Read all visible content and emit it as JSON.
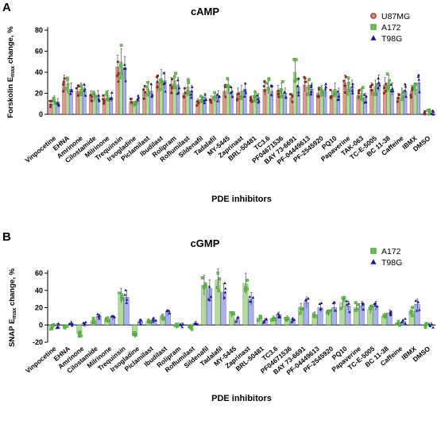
{
  "chart_data": [
    {
      "type": "bar",
      "panel": "A",
      "title": "cAMP",
      "xlabel": "PDE inhibitors",
      "ylabel": "Forskolin E",
      "ylabel_sub": "max",
      "ylabel_tail": " change, %",
      "ylim": [
        0,
        80
      ],
      "yticks": [
        0,
        20,
        40,
        60,
        80
      ],
      "legend_position": "top-right",
      "categories": [
        "Vinpocetine",
        "EHNA",
        "Amrinone",
        "Cilostamide",
        "Milrinone",
        "Trequinsin",
        "Irsogladine",
        "Piclamilast",
        "Ibudilast",
        "Rolipram",
        "Roflumilast",
        "Sildenafil",
        "Tadalafil",
        "MY-5445",
        "Zaprinast",
        "BRL-50481",
        "TC3.6",
        "PF04671536",
        "BAY 73-6691",
        "PF-04449613",
        "PF-2545920",
        "PQ10",
        "Papaverine",
        "TAK-063",
        "TC-E-5005",
        "BC 11-38",
        "Caffeine",
        "IBMX",
        "DMSO"
      ],
      "series": [
        {
          "name": "U87MG",
          "color": "#d98a7a",
          "edge": "#8b2a1e",
          "marker": "circle",
          "values": [
            10,
            30,
            22,
            18,
            15,
            45,
            12,
            22,
            30,
            28,
            20,
            12,
            14,
            22,
            20,
            14,
            24,
            22,
            16,
            28,
            20,
            18,
            30,
            18,
            24,
            28,
            16,
            22,
            1
          ]
        },
        {
          "name": "A172",
          "color": "#a6d48a",
          "edge": "#2e8b2e",
          "marker": "square",
          "values": [
            14,
            26,
            24,
            16,
            18,
            50,
            10,
            24,
            34,
            32,
            26,
            14,
            16,
            26,
            22,
            18,
            26,
            24,
            40,
            26,
            22,
            24,
            28,
            20,
            26,
            30,
            20,
            24,
            1
          ]
        },
        {
          "name": "T98G",
          "color": "#9aa6e6",
          "edge": "#1a1a8c",
          "marker": "triangle",
          "values": [
            12,
            24,
            22,
            18,
            16,
            44,
            14,
            22,
            32,
            28,
            22,
            16,
            18,
            20,
            24,
            16,
            22,
            20,
            26,
            24,
            22,
            20,
            26,
            16,
            30,
            24,
            22,
            30,
            1
          ]
        }
      ]
    },
    {
      "type": "bar",
      "panel": "B",
      "title": "cGMP",
      "xlabel": "PDE inhibitors",
      "ylabel": "SNAP E",
      "ylabel_sub": "max",
      "ylabel_tail": " change, %",
      "ylim": [
        -20,
        60
      ],
      "yticks": [
        -20,
        0,
        20,
        40,
        60
      ],
      "legend_position": "top-right",
      "categories": [
        "Vinpocetine",
        "EHNA",
        "Amrinone",
        "Cilostamide",
        "Milrinone",
        "Trequinsin",
        "Irsogladine",
        "Piclamilast",
        "Ibudilast",
        "Rolipram",
        "Roflumilast",
        "Sildenafil",
        "Tadalafil",
        "MY-5445",
        "Zaprinast",
        "BRL-50481",
        "TC3.6",
        "PF04671536",
        "BAY 73-6691",
        "PF-04449613",
        "PF-2545920",
        "PQ10",
        "Papaverine",
        "TC-E-5005",
        "BC 11-38",
        "Caffeine",
        "IBMX",
        "DMSO"
      ],
      "series": [
        {
          "name": "A172",
          "color": "#a6d48a",
          "edge": "#2e8b2e",
          "marker": "square",
          "values": [
            -2,
            -3,
            -10,
            5,
            6,
            34,
            -12,
            4,
            10,
            -2,
            -3,
            46,
            52,
            12,
            48,
            8,
            8,
            8,
            20,
            12,
            14,
            26,
            20,
            18,
            10,
            2,
            16,
            0
          ]
        },
        {
          "name": "T98G",
          "color": "#9aa6e6",
          "edge": "#1a1a8c",
          "marker": "triangle",
          "values": [
            -1,
            2,
            0,
            10,
            8,
            32,
            4,
            6,
            14,
            0,
            2,
            42,
            38,
            6,
            30,
            5,
            12,
            6,
            26,
            20,
            20,
            22,
            22,
            22,
            14,
            4,
            24,
            0
          ]
        }
      ]
    }
  ]
}
